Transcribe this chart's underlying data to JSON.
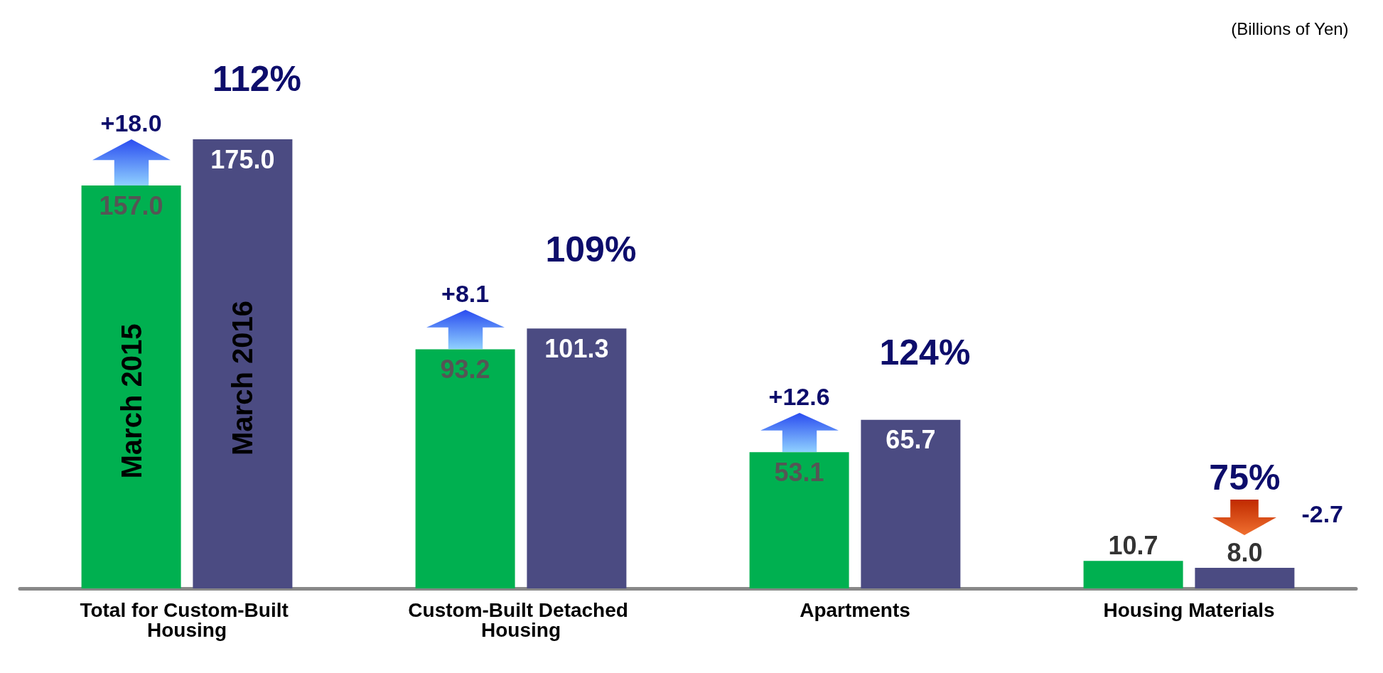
{
  "chart_data": {
    "type": "bar",
    "categories": [
      "Total for Custom-Built Housing",
      "Custom-Built Detached Housing",
      "Apartments",
      "Housing Materials"
    ],
    "series": [
      {
        "name": "March 2015",
        "color": "#00b050",
        "values": [
          157.0,
          93.2,
          53.1,
          10.7
        ],
        "value_labels": [
          "157.0",
          "93.2",
          "53.1",
          "10.7"
        ]
      },
      {
        "name": "March 2016",
        "color": "#4b4b82",
        "values": [
          175.0,
          101.3,
          65.7,
          8.0
        ],
        "value_labels": [
          "175.0",
          "101.3",
          "65.7",
          "8.0"
        ]
      }
    ],
    "annotations": [
      "(Billions of Yen)",
      "+18.0",
      "112%",
      "+8.1",
      "109%",
      "+12.6",
      "124%",
      "-2.7",
      "75%"
    ],
    "legend": false
  }
}
